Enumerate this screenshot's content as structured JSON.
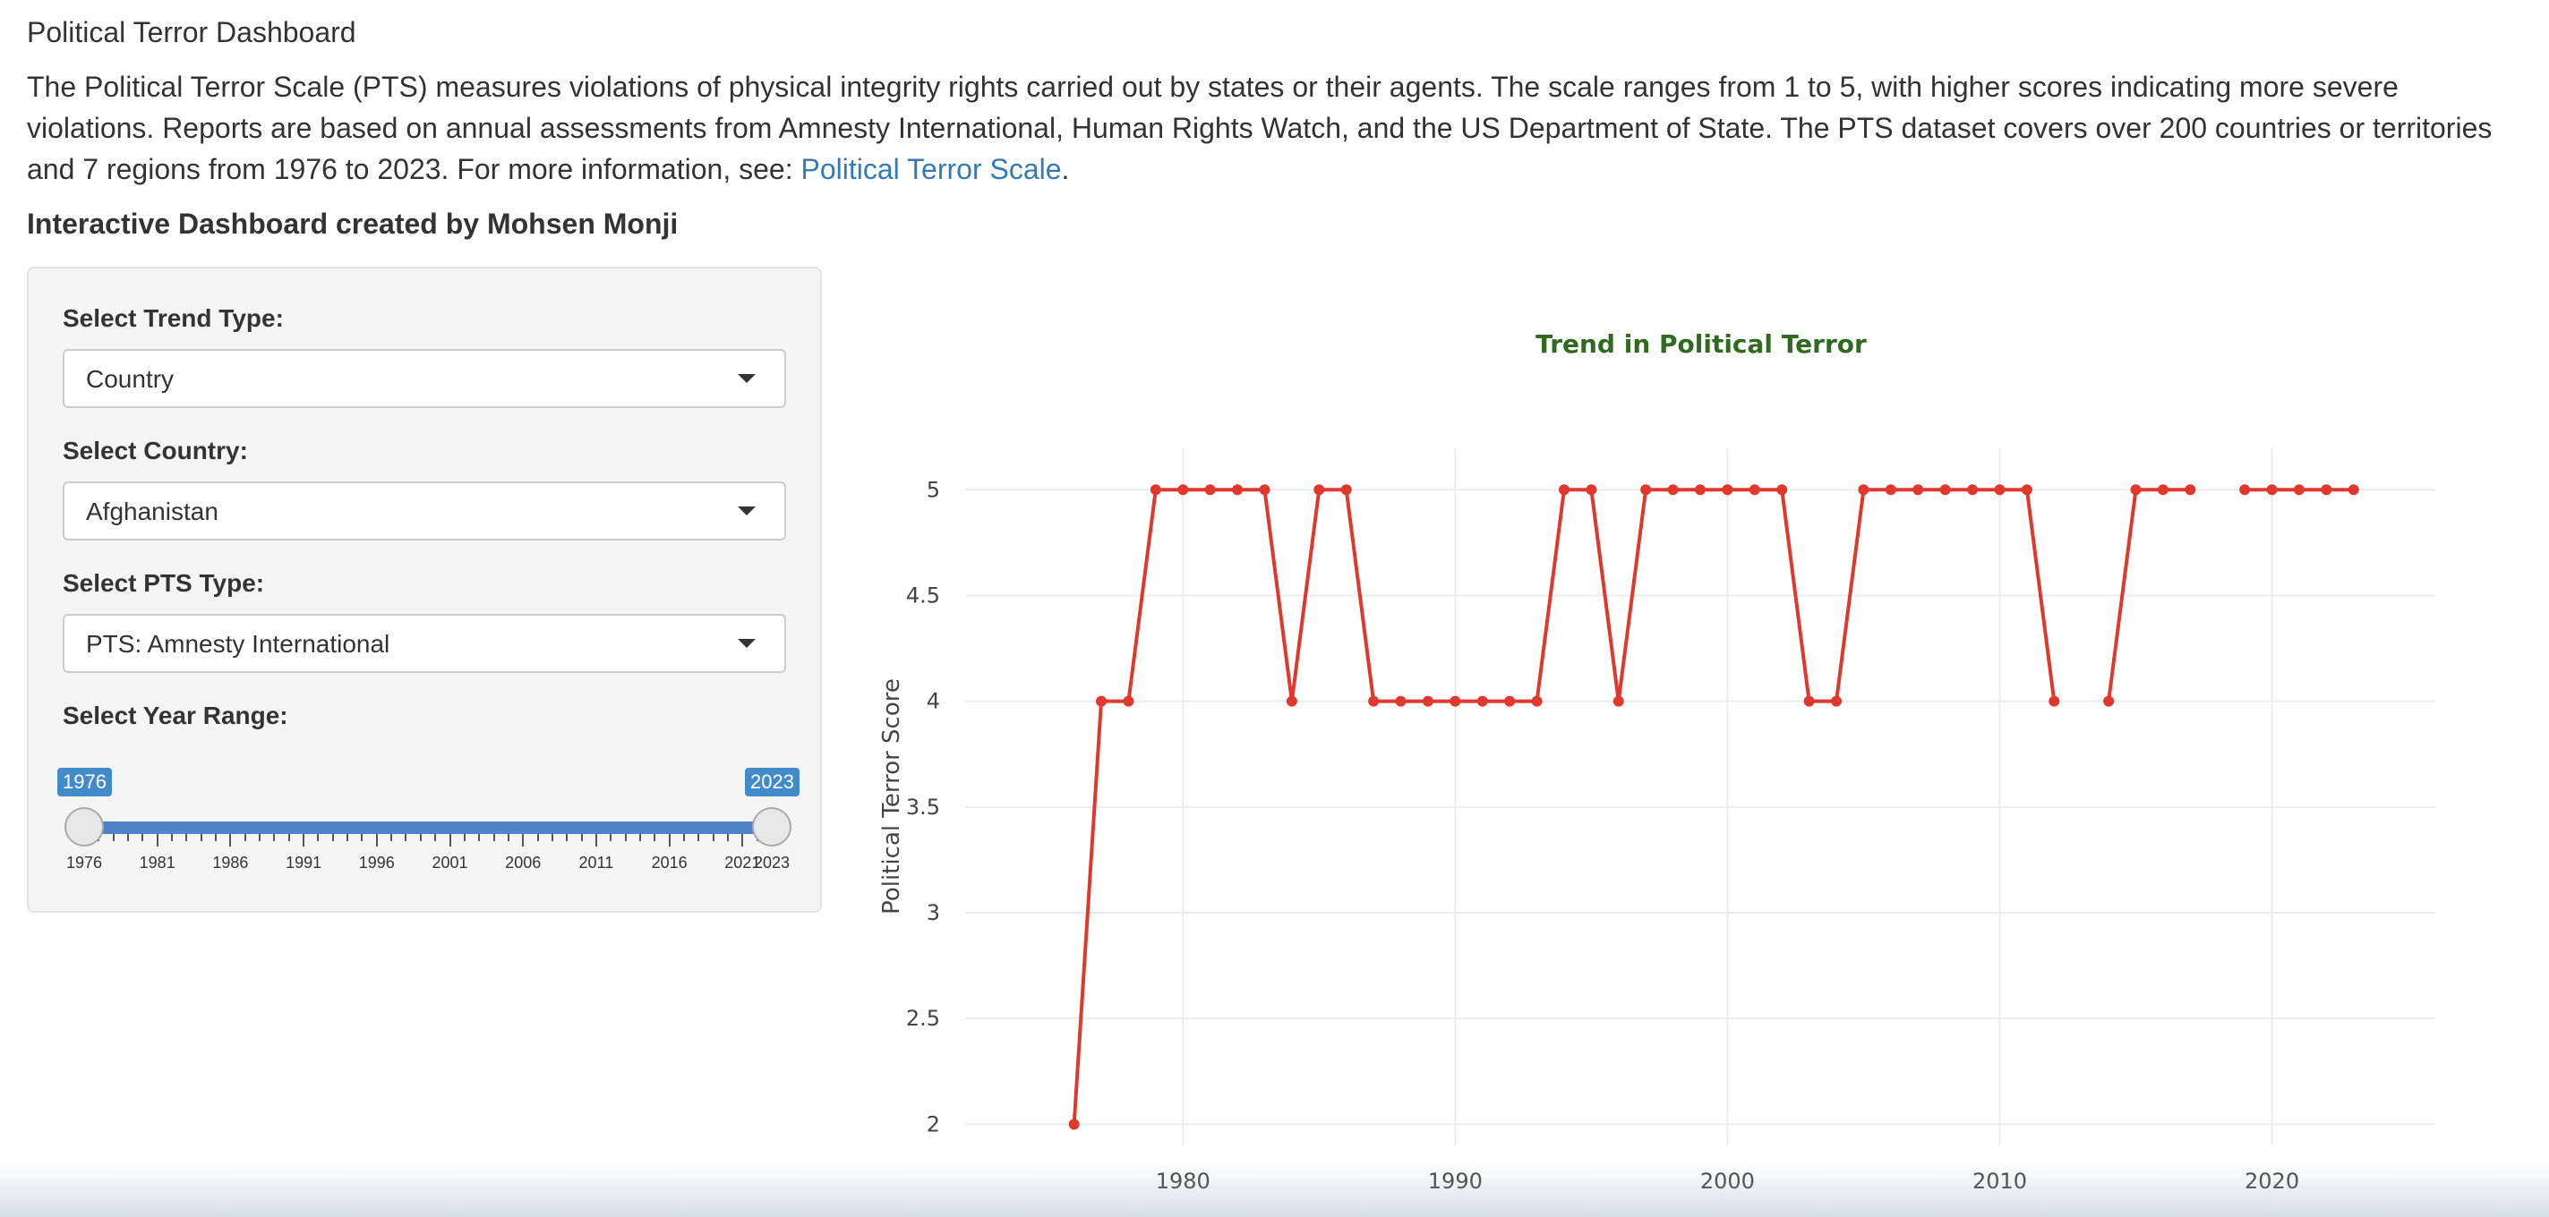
{
  "header": {
    "title": "Political Terror Dashboard",
    "intro_text": "The Political Terror Scale (PTS) measures violations of physical integrity rights carried out by states or their agents. The scale ranges from 1 to 5, with higher scores indicating more severe violations. Reports are based on annual assessments from Amnesty International, Human Rights Watch, and the US Department of State. The PTS dataset covers over 200 countries or territories and 7 regions from 1976 to 2023. For more information, see: ",
    "link_text": "Political Terror Scale",
    "link_suffix": ".",
    "author": "Interactive Dashboard created by Mohsen Monji"
  },
  "sidebar": {
    "trend_type": {
      "label": "Select Trend Type:",
      "value": "Country"
    },
    "country": {
      "label": "Select Country:",
      "value": "Afghanistan"
    },
    "pts_type": {
      "label": "Select PTS Type:",
      "value": "PTS: Amnesty International"
    },
    "year_range": {
      "label": "Select Year Range:",
      "min": 1976,
      "max": 2023,
      "from": 1976,
      "to": 2023,
      "from_label": "1976",
      "to_label": "2023",
      "tick_labels": [
        "1976",
        "1981",
        "1986",
        "1991",
        "1996",
        "2001",
        "2006",
        "2011",
        "2016",
        "2021",
        "2023"
      ]
    }
  },
  "colors": {
    "accent": "#428bca",
    "line": "#e0382d",
    "chart_title": "#2e6b1f",
    "link": "#337ab7"
  },
  "chart_data": {
    "type": "line",
    "title": "Trend in Political Terror",
    "xlabel": "",
    "ylabel": "Political Terror Score",
    "x_ticks": [
      1980,
      1990,
      2000,
      2010,
      2020
    ],
    "y_ticks": [
      2,
      2.5,
      3,
      3.5,
      4,
      4.5,
      5
    ],
    "xlim": [
      1972,
      2026
    ],
    "ylim": [
      1.9,
      5.2
    ],
    "grid": true,
    "x": [
      1976,
      1977,
      1978,
      1979,
      1980,
      1981,
      1982,
      1983,
      1984,
      1985,
      1986,
      1987,
      1988,
      1989,
      1990,
      1991,
      1992,
      1993,
      1994,
      1995,
      1996,
      1997,
      1998,
      1999,
      2000,
      2001,
      2002,
      2003,
      2004,
      2005,
      2006,
      2007,
      2008,
      2009,
      2010,
      2011,
      2012,
      2013,
      2014,
      2015,
      2016,
      2017,
      2018,
      2019,
      2020,
      2021,
      2022,
      2023
    ],
    "y": [
      2,
      4,
      4,
      5,
      5,
      5,
      5,
      5,
      4,
      5,
      5,
      4,
      4,
      4,
      4,
      4,
      4,
      4,
      5,
      5,
      4,
      5,
      5,
      5,
      5,
      5,
      5,
      4,
      4,
      5,
      5,
      5,
      5,
      5,
      5,
      5,
      4,
      null,
      4,
      5,
      5,
      5,
      null,
      5,
      5,
      5,
      5,
      5
    ]
  }
}
